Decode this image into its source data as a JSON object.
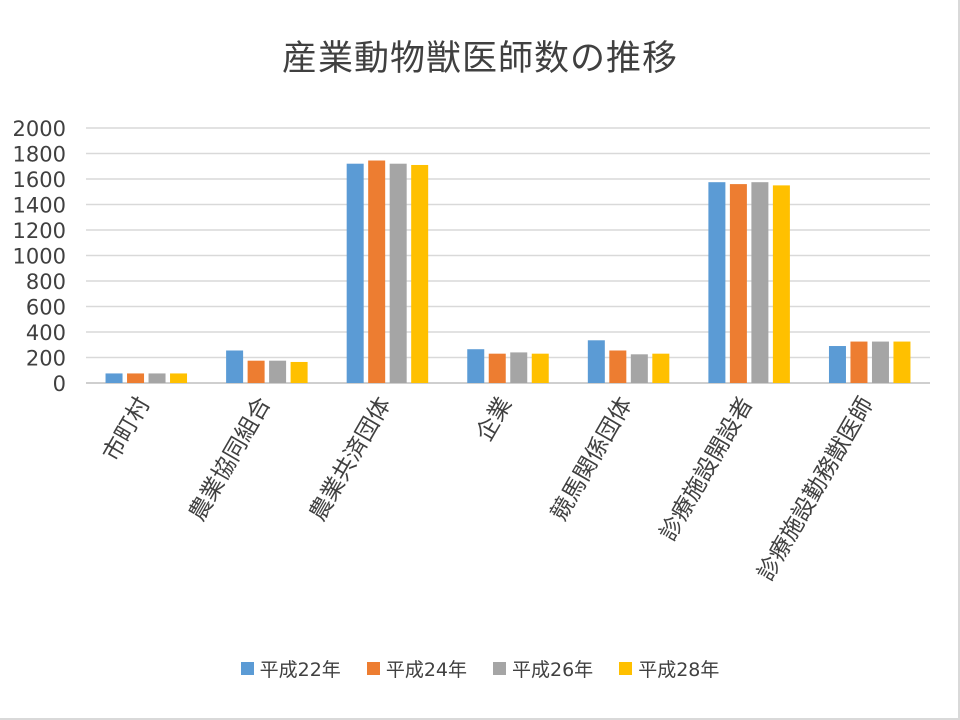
{
  "chart_data": {
    "type": "bar",
    "title": "産業動物獣医師数の推移",
    "xlabel": "",
    "ylabel": "",
    "ylim": [
      0,
      2000
    ],
    "yticks": [
      0,
      200,
      400,
      600,
      800,
      1000,
      1200,
      1400,
      1600,
      1800,
      2000
    ],
    "grid": true,
    "legend_position": "bottom",
    "categories": [
      "市町村",
      "農業協同組合",
      "農業共済団体",
      "企業",
      "競馬関係団体",
      "診療施設開設者",
      "診療施設勤務獣医師"
    ],
    "series": [
      {
        "name": "平成22年",
        "color": "#5b9bd5",
        "values": [
          75,
          255,
          1720,
          265,
          335,
          1575,
          290
        ]
      },
      {
        "name": "平成24年",
        "color": "#ed7d31",
        "values": [
          75,
          175,
          1745,
          230,
          255,
          1560,
          325
        ]
      },
      {
        "name": "平成26年",
        "color": "#a5a5a5",
        "values": [
          75,
          175,
          1720,
          240,
          225,
          1575,
          325
        ]
      },
      {
        "name": "平成28年",
        "color": "#ffc000",
        "values": [
          75,
          165,
          1710,
          230,
          230,
          1550,
          325
        ]
      }
    ]
  }
}
